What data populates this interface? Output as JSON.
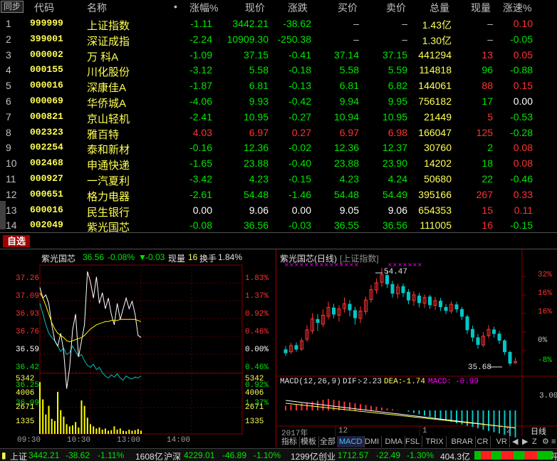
{
  "table": {
    "sync_label": "同步",
    "headers": {
      "code": "代码",
      "name": "名称",
      "dot": "•",
      "pct": "涨幅%",
      "price": "现价",
      "chg": "涨跌",
      "bid": "买价",
      "ask": "卖价",
      "vol": "总量",
      "cur": "现量",
      "spd": "涨速%"
    },
    "rows": [
      {
        "idx": "1",
        "code": "999999",
        "name": "上证指数",
        "pct": "-1.11",
        "price": "3442.21",
        "chg": "-38.62",
        "bid": "–",
        "ask": "–",
        "vol": "1.43亿",
        "cur": "–",
        "spd": "0.10",
        "dir": "down",
        "spd_dir": "up"
      },
      {
        "idx": "2",
        "code": "399001",
        "name": "深证成指",
        "pct": "-2.24",
        "price": "10909.30",
        "chg": "-250.38",
        "bid": "–",
        "ask": "–",
        "vol": "1.30亿",
        "cur": "–",
        "spd": "-0.05",
        "dir": "down",
        "spd_dir": "down"
      },
      {
        "idx": "3",
        "code": "000002",
        "name": "万 科A",
        "pct": "-1.09",
        "price": "37.15",
        "chg": "-0.41",
        "bid": "37.14",
        "ask": "37.15",
        "vol": "441294",
        "cur": "13",
        "spd": "0.05",
        "dir": "down",
        "spd_dir": "up",
        "cur_dir": "up"
      },
      {
        "idx": "4",
        "code": "000155",
        "name": "川化股份",
        "pct": "-3.12",
        "price": "5.58",
        "chg": "-0.18",
        "bid": "5.58",
        "ask": "5.59",
        "vol": "114818",
        "cur": "96",
        "spd": "-0.88",
        "dir": "down",
        "spd_dir": "down",
        "cur_dir": "down"
      },
      {
        "idx": "5",
        "code": "000016",
        "name": "深康佳A",
        "pct": "-1.87",
        "price": "6.81",
        "chg": "-0.13",
        "bid": "6.81",
        "ask": "6.82",
        "vol": "144061",
        "cur": "88",
        "spd": "0.15",
        "dir": "down",
        "spd_dir": "up",
        "cur_dir": "up"
      },
      {
        "idx": "6",
        "code": "000069",
        "name": "华侨城A",
        "pct": "-4.06",
        "price": "9.93",
        "chg": "-0.42",
        "bid": "9.94",
        "ask": "9.95",
        "vol": "756182",
        "cur": "17",
        "spd": "0.00",
        "dir": "down",
        "spd_dir": "flat",
        "cur_dir": "down"
      },
      {
        "idx": "7",
        "code": "000821",
        "name": "京山轻机",
        "pct": "-2.41",
        "price": "10.95",
        "chg": "-0.27",
        "bid": "10.94",
        "ask": "10.95",
        "vol": "21449",
        "cur": "5",
        "spd": "-0.53",
        "dir": "down",
        "spd_dir": "down",
        "cur_dir": "up"
      },
      {
        "idx": "8",
        "code": "002323",
        "name": "雅百特",
        "pct": "4.03",
        "price": "6.97",
        "chg": "0.27",
        "bid": "6.97",
        "ask": "6.98",
        "vol": "166047",
        "cur": "125",
        "spd": "-0.28",
        "dir": "up",
        "spd_dir": "down",
        "cur_dir": "up"
      },
      {
        "idx": "9",
        "code": "002254",
        "name": "泰和新材",
        "pct": "-0.16",
        "price": "12.36",
        "chg": "-0.02",
        "bid": "12.36",
        "ask": "12.37",
        "vol": "30760",
        "cur": "2",
        "spd": "0.08",
        "dir": "down",
        "spd_dir": "up",
        "cur_dir": "down"
      },
      {
        "idx": "10",
        "code": "002468",
        "name": "申通快递",
        "pct": "-1.65",
        "price": "23.88",
        "chg": "-0.40",
        "bid": "23.88",
        "ask": "23.90",
        "vol": "14202",
        "cur": "18",
        "spd": "0.08",
        "dir": "down",
        "spd_dir": "up",
        "cur_dir": "down"
      },
      {
        "idx": "11",
        "code": "000927",
        "name": "一汽夏利",
        "pct": "-3.42",
        "price": "4.23",
        "chg": "-0.15",
        "bid": "4.23",
        "ask": "4.24",
        "vol": "50680",
        "cur": "22",
        "spd": "-0.46",
        "dir": "down",
        "spd_dir": "down",
        "cur_dir": "down"
      },
      {
        "idx": "12",
        "code": "000651",
        "name": "格力电器",
        "pct": "-2.61",
        "price": "54.48",
        "chg": "-1.46",
        "bid": "54.48",
        "ask": "54.49",
        "vol": "395166",
        "cur": "267",
        "spd": "0.33",
        "dir": "down",
        "spd_dir": "up",
        "cur_dir": "up"
      },
      {
        "idx": "13",
        "code": "600016",
        "name": "民生银行",
        "pct": "0.00",
        "price": "9.06",
        "chg": "0.00",
        "bid": "9.05",
        "ask": "9.06",
        "vol": "654353",
        "cur": "15",
        "spd": "0.11",
        "dir": "flat",
        "spd_dir": "up",
        "cur_dir": "up"
      },
      {
        "idx": "14",
        "code": "002049",
        "name": "紫光国芯",
        "pct": "-0.08",
        "price": "36.56",
        "chg": "-0.03",
        "bid": "36.55",
        "ask": "36.56",
        "vol": "111005",
        "cur": "16",
        "spd": "-0.15",
        "dir": "down",
        "spd_dir": "down",
        "cur_dir": "up"
      }
    ]
  },
  "tab_bar": {
    "zixuan": "自选"
  },
  "intraday": {
    "name": "紫光国芯",
    "price": "36.56",
    "pct": "-0.08%",
    "arrow": "▼",
    "chg": "-0.03",
    "cur_label": "现量",
    "cur": "16",
    "turnover_label": "换手",
    "turnover": "1.84%",
    "price_axis": [
      "37.26",
      "37.09",
      "36.93",
      "36.76",
      "36.59",
      "36.42",
      "36.25",
      "36.09"
    ],
    "pct_axis": [
      "1.83%",
      "1.37%",
      "0.92%",
      "0.46%",
      "0.00%",
      "0.46%",
      "0.92%",
      "1.37%"
    ],
    "vol_axis": [
      "5342",
      "4006",
      "2671",
      "1335"
    ],
    "time_axis": [
      "09:30",
      "10:30",
      "13:00",
      "14:00"
    ],
    "price_line": [
      37.05,
      36.95,
      36.98,
      36.9,
      36.7,
      36.55,
      36.5,
      36.62,
      36.45,
      36.1,
      36.3,
      36.65,
      36.8,
      36.4,
      36.55,
      36.7,
      37.2,
      37.1,
      36.95,
      37.15,
      36.9,
      37.0,
      36.85,
      36.95,
      36.8,
      36.7,
      36.9,
      36.75,
      36.85,
      36.95,
      36.85,
      36.92,
      36.8,
      36.6,
      36.58
    ],
    "avg_line": [
      37.0,
      36.95,
      36.88,
      36.8,
      36.72,
      36.66,
      36.62,
      36.6,
      36.58,
      36.55,
      36.54,
      36.55,
      36.56,
      36.57,
      36.58,
      36.6,
      36.63,
      36.66,
      36.68,
      36.7,
      36.71,
      36.72,
      36.73,
      36.73,
      36.74,
      36.74,
      36.74,
      36.75,
      36.75,
      36.75,
      36.75,
      36.75,
      36.75,
      36.74,
      36.73
    ],
    "index_line": [
      36.9,
      36.8,
      36.7,
      36.62,
      36.58,
      36.55,
      36.5,
      36.45,
      36.48,
      36.42,
      36.44,
      36.5,
      36.45,
      36.4,
      36.42,
      36.36,
      36.32,
      36.3,
      36.33,
      36.28,
      36.3,
      36.25,
      36.22,
      36.2,
      36.23,
      36.21,
      36.24,
      36.2,
      36.18,
      36.22,
      36.2,
      36.19,
      36.21,
      36.2,
      36.22
    ],
    "volume": [
      4800,
      3200,
      1800,
      2600,
      1400,
      1200,
      3900,
      2200,
      1600,
      900,
      700,
      800,
      1100,
      600,
      3100,
      2600,
      1500,
      900,
      700,
      500,
      600,
      400,
      500,
      300,
      350,
      700,
      400,
      500,
      300,
      250,
      400,
      300,
      350,
      450,
      300
    ],
    "prev_close": 36.59
  },
  "kline": {
    "title": "紫光国芯(日线)",
    "index_label": "[上证指数]",
    "hi_label": "54.47",
    "lo_label": "35.68",
    "pct_axis": [
      "32%",
      "16%",
      "16%",
      "0%",
      "-8%"
    ],
    "macd_label": "MACD(12,26,9)",
    "dif_label": "DIF:",
    "dif": "-2.23",
    "dea_label": "DEA:",
    "dea": "-1.74",
    "macd_val_label": "MACD:",
    "macd_val": "-0.99",
    "macd_axis": "3.00",
    "date_labels": [
      "2017年",
      "12",
      "1",
      "2"
    ],
    "period_label": "日线",
    "candles": [
      {
        "o": 38.8,
        "c": 38.2,
        "h": 39.5,
        "l": 37.6
      },
      {
        "o": 38.4,
        "c": 39.6,
        "h": 40.1,
        "l": 38.0
      },
      {
        "o": 39.6,
        "c": 38.9,
        "h": 40.2,
        "l": 38.4
      },
      {
        "o": 38.9,
        "c": 40.5,
        "h": 41.0,
        "l": 38.6
      },
      {
        "o": 40.8,
        "c": 42.6,
        "h": 43.5,
        "l": 40.3
      },
      {
        "o": 42.4,
        "c": 44.7,
        "h": 45.8,
        "l": 41.8
      },
      {
        "o": 44.6,
        "c": 44.0,
        "h": 45.6,
        "l": 42.4
      },
      {
        "o": 43.7,
        "c": 45.4,
        "h": 46.5,
        "l": 43.1
      },
      {
        "o": 45.2,
        "c": 46.9,
        "h": 48.0,
        "l": 44.6
      },
      {
        "o": 46.8,
        "c": 45.6,
        "h": 47.6,
        "l": 44.8
      },
      {
        "o": 45.4,
        "c": 46.6,
        "h": 47.3,
        "l": 44.2
      },
      {
        "o": 46.7,
        "c": 47.6,
        "h": 48.8,
        "l": 45.9
      },
      {
        "o": 47.5,
        "c": 46.4,
        "h": 48.3,
        "l": 45.2
      },
      {
        "o": 46.3,
        "c": 44.9,
        "h": 47.0,
        "l": 43.6
      },
      {
        "o": 44.8,
        "c": 46.2,
        "h": 47.1,
        "l": 43.9
      },
      {
        "o": 46.1,
        "c": 48.3,
        "h": 49.0,
        "l": 45.5
      },
      {
        "o": 48.4,
        "c": 50.3,
        "h": 51.2,
        "l": 47.8
      },
      {
        "o": 50.2,
        "c": 51.6,
        "h": 52.4,
        "l": 49.5
      },
      {
        "o": 51.7,
        "c": 53.2,
        "h": 54.47,
        "l": 50.8
      },
      {
        "o": 53.0,
        "c": 51.4,
        "h": 53.9,
        "l": 50.6
      },
      {
        "o": 51.3,
        "c": 49.6,
        "h": 52.0,
        "l": 48.8
      },
      {
        "o": 49.5,
        "c": 50.8,
        "h": 51.4,
        "l": 48.6
      },
      {
        "o": 50.9,
        "c": 49.7,
        "h": 51.5,
        "l": 48.9
      },
      {
        "o": 49.8,
        "c": 48.3,
        "h": 50.4,
        "l": 47.5
      },
      {
        "o": 48.2,
        "c": 49.3,
        "h": 50.0,
        "l": 47.2
      },
      {
        "o": 49.1,
        "c": 47.8,
        "h": 49.7,
        "l": 46.9
      },
      {
        "o": 47.7,
        "c": 48.8,
        "h": 49.4,
        "l": 46.8
      },
      {
        "o": 48.9,
        "c": 47.4,
        "h": 49.3,
        "l": 46.6
      },
      {
        "o": 47.3,
        "c": 48.2,
        "h": 48.9,
        "l": 46.4
      },
      {
        "o": 48.1,
        "c": 47.0,
        "h": 48.7,
        "l": 46.2
      },
      {
        "o": 46.9,
        "c": 46.3,
        "h": 47.5,
        "l": 45.6
      },
      {
        "o": 46.2,
        "c": 47.5,
        "h": 48.1,
        "l": 45.7
      },
      {
        "o": 47.4,
        "c": 46.6,
        "h": 48.0,
        "l": 45.9
      },
      {
        "o": 46.5,
        "c": 45.2,
        "h": 47.0,
        "l": 44.5
      },
      {
        "o": 45.1,
        "c": 42.6,
        "h": 45.5,
        "l": 41.8
      },
      {
        "o": 42.7,
        "c": 41.2,
        "h": 43.4,
        "l": 40.3
      },
      {
        "o": 41.1,
        "c": 39.8,
        "h": 41.8,
        "l": 39.0
      },
      {
        "o": 39.7,
        "c": 41.4,
        "h": 42.2,
        "l": 39.3
      },
      {
        "o": 41.5,
        "c": 42.7,
        "h": 43.5,
        "l": 41.0
      },
      {
        "o": 42.6,
        "c": 41.9,
        "h": 43.2,
        "l": 41.1
      },
      {
        "o": 41.8,
        "c": 40.6,
        "h": 42.4,
        "l": 39.9
      },
      {
        "o": 40.5,
        "c": 38.4,
        "h": 40.8,
        "l": 37.8
      },
      {
        "o": 38.3,
        "c": 36.2,
        "h": 38.6,
        "l": 35.68
      },
      {
        "o": 36.3,
        "c": 36.56,
        "h": 37.26,
        "l": 36.09
      }
    ]
  },
  "subtabs": [
    "指标",
    "模板",
    "全部",
    "MACD",
    "DMI",
    "DMA",
    "FSL",
    "TRIX",
    "BRAR",
    "CR",
    "VR"
  ],
  "status_bar": {
    "sh_label": "上证",
    "sh_price": "3442.21",
    "sh_chg": "-38.62",
    "sh_pct": "-1.11%",
    "sh_amt": "1608亿",
    "sz_label": "沪深",
    "sz_price": "4229.01",
    "sz_chg": "-46.89",
    "sz_pct": "-1.10%",
    "sz_amt": "1299亿",
    "cy_label": "创业",
    "cy_price": "1712.57",
    "cy_chg": "-22.49",
    "cy_pct": "-1.30%",
    "cy_amt": "404.3亿",
    "end_label": "平"
  },
  "colors": {
    "up": "#ff3232",
    "down": "#00e600",
    "flat": "#ffffff",
    "code": "#ffff54",
    "avg": "#ffff00",
    "index": "#00c0c0",
    "macd_pink": "#ff00ff"
  }
}
